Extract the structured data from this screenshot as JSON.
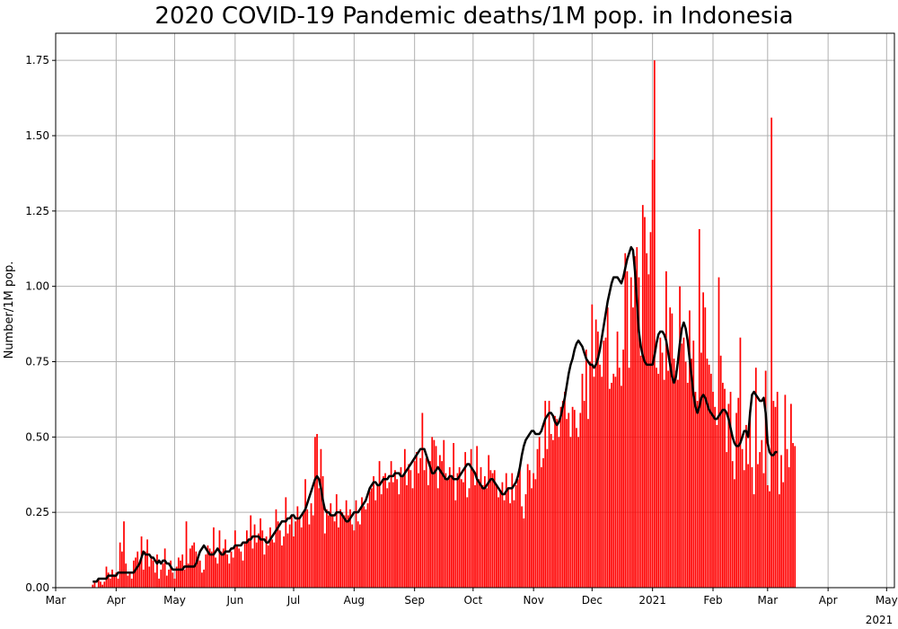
{
  "chart_data": {
    "type": "bar",
    "title": "2020 COVID-19 Pandemic deaths/1M pop. in Indonesia",
    "xlabel": "",
    "ylabel": "Number/1M pop.",
    "ylim": [
      0,
      1.84
    ],
    "yticks": [
      "0.00",
      "0.25",
      "0.50",
      "0.75",
      "1.00",
      "1.25",
      "1.50",
      "1.75"
    ],
    "xlim": [
      "2020-03-01",
      "2021-05-05"
    ],
    "xticks": [
      {
        "date": "2020-03-01",
        "label": "Mar"
      },
      {
        "date": "2020-04-01",
        "label": "Apr"
      },
      {
        "date": "2020-05-01",
        "label": "May"
      },
      {
        "date": "2020-06-01",
        "label": "Jun"
      },
      {
        "date": "2020-07-01",
        "label": "Jul"
      },
      {
        "date": "2020-08-01",
        "label": "Aug"
      },
      {
        "date": "2020-09-01",
        "label": "Sep"
      },
      {
        "date": "2020-10-01",
        "label": "Oct"
      },
      {
        "date": "2020-11-01",
        "label": "Nov"
      },
      {
        "date": "2020-12-01",
        "label": "Dec"
      },
      {
        "date": "2021-01-01",
        "label": "2021"
      },
      {
        "date": "2021-02-01",
        "label": "Feb"
      },
      {
        "date": "2021-03-01",
        "label": "Mar"
      },
      {
        "date": "2021-04-01",
        "label": "Apr"
      },
      {
        "date": "2021-05-01",
        "label": "May"
      }
    ],
    "offset_label": "2021",
    "grid": true,
    "bar_color": "#ff0000",
    "line_color": "#000000",
    "series": [
      {
        "type": "bar",
        "x_start": "2020-03-20",
        "values": [
          0.01,
          0.02,
          0.0,
          0.03,
          0.02,
          0.01,
          0.02,
          0.07,
          0.05,
          0.03,
          0.06,
          0.04,
          0.05,
          0.03,
          0.15,
          0.12,
          0.22,
          0.08,
          0.04,
          0.05,
          0.03,
          0.09,
          0.1,
          0.12,
          0.08,
          0.17,
          0.06,
          0.12,
          0.16,
          0.07,
          0.1,
          0.09,
          0.05,
          0.11,
          0.03,
          0.06,
          0.08,
          0.13,
          0.04,
          0.06,
          0.09,
          0.05,
          0.03,
          0.07,
          0.1,
          0.09,
          0.11,
          0.06,
          0.22,
          0.08,
          0.13,
          0.14,
          0.15,
          0.12,
          0.1,
          0.09,
          0.05,
          0.06,
          0.11,
          0.14,
          0.13,
          0.12,
          0.2,
          0.1,
          0.08,
          0.19,
          0.12,
          0.13,
          0.16,
          0.11,
          0.08,
          0.12,
          0.1,
          0.19,
          0.14,
          0.13,
          0.12,
          0.09,
          0.15,
          0.19,
          0.16,
          0.24,
          0.13,
          0.21,
          0.15,
          0.18,
          0.23,
          0.19,
          0.11,
          0.17,
          0.14,
          0.2,
          0.16,
          0.15,
          0.26,
          0.22,
          0.19,
          0.14,
          0.17,
          0.3,
          0.18,
          0.21,
          0.24,
          0.17,
          0.22,
          0.27,
          0.23,
          0.2,
          0.25,
          0.36,
          0.26,
          0.21,
          0.28,
          0.24,
          0.5,
          0.51,
          0.33,
          0.46,
          0.37,
          0.18,
          0.26,
          0.24,
          0.28,
          0.24,
          0.22,
          0.31,
          0.2,
          0.26,
          0.25,
          0.24,
          0.29,
          0.24,
          0.26,
          0.21,
          0.19,
          0.29,
          0.22,
          0.21,
          0.3,
          0.27,
          0.26,
          0.28,
          0.32,
          0.33,
          0.37,
          0.29,
          0.34,
          0.42,
          0.31,
          0.37,
          0.38,
          0.33,
          0.35,
          0.42,
          0.35,
          0.39,
          0.36,
          0.31,
          0.4,
          0.37,
          0.46,
          0.34,
          0.41,
          0.39,
          0.33,
          0.42,
          0.45,
          0.38,
          0.43,
          0.58,
          0.39,
          0.43,
          0.34,
          0.42,
          0.5,
          0.49,
          0.47,
          0.33,
          0.44,
          0.42,
          0.49,
          0.38,
          0.36,
          0.4,
          0.37,
          0.48,
          0.29,
          0.38,
          0.4,
          0.36,
          0.35,
          0.45,
          0.3,
          0.33,
          0.46,
          0.39,
          0.34,
          0.47,
          0.36,
          0.4,
          0.34,
          0.37,
          0.33,
          0.44,
          0.39,
          0.38,
          0.39,
          0.34,
          0.3,
          0.32,
          0.35,
          0.29,
          0.38,
          0.33,
          0.28,
          0.38,
          0.29,
          0.34,
          0.36,
          0.4,
          0.27,
          0.23,
          0.31,
          0.41,
          0.39,
          0.33,
          0.38,
          0.36,
          0.46,
          0.5,
          0.4,
          0.43,
          0.62,
          0.46,
          0.62,
          0.51,
          0.49,
          0.57,
          0.56,
          0.5,
          0.6,
          0.62,
          0.65,
          0.56,
          0.58,
          0.5,
          0.6,
          0.59,
          0.53,
          0.5,
          0.58,
          0.71,
          0.62,
          0.79,
          0.56,
          0.75,
          0.94,
          0.7,
          0.89,
          0.85,
          0.74,
          0.7,
          0.82,
          0.83,
          0.93,
          0.66,
          0.68,
          0.71,
          0.7,
          0.85,
          0.73,
          0.67,
          0.79,
          1.11,
          1.05,
          0.73,
          1.03,
          0.93,
          1.1,
          1.13,
          1.03,
          0.77,
          1.27,
          1.23,
          1.11,
          1.04,
          1.18,
          1.42,
          1.75,
          0.73,
          0.71,
          0.83,
          0.78,
          0.69,
          1.05,
          0.72,
          0.93,
          0.91,
          0.76,
          0.72,
          0.69,
          1.0,
          0.81,
          0.83,
          0.75,
          0.68,
          0.92,
          0.76,
          0.82,
          0.65,
          0.62,
          1.19,
          0.78,
          0.98,
          0.93,
          0.76,
          0.74,
          0.71,
          0.65,
          0.6,
          0.54,
          1.03,
          0.77,
          0.68,
          0.66,
          0.45,
          0.61,
          0.65,
          0.42,
          0.36,
          0.58,
          0.63,
          0.83,
          0.46,
          0.39,
          0.54,
          0.41,
          0.59,
          0.4,
          0.31,
          0.73,
          0.41,
          0.45,
          0.49,
          0.38,
          0.72,
          0.34,
          0.32,
          1.56,
          0.62,
          0.6,
          0.65,
          0.31,
          0.44,
          0.35,
          0.64,
          0.46,
          0.4,
          0.61,
          0.48,
          0.47
        ]
      },
      {
        "type": "line",
        "name": "",
        "x_start": "2020-03-20",
        "values": [
          0.02,
          0.02,
          0.02,
          0.03,
          0.03,
          0.03,
          0.03,
          0.03,
          0.04,
          0.04,
          0.04,
          0.04,
          0.04,
          0.05,
          0.05,
          0.05,
          0.05,
          0.05,
          0.05,
          0.05,
          0.05,
          0.05,
          0.06,
          0.07,
          0.08,
          0.1,
          0.12,
          0.11,
          0.11,
          0.11,
          0.1,
          0.1,
          0.09,
          0.08,
          0.09,
          0.08,
          0.09,
          0.09,
          0.08,
          0.08,
          0.07,
          0.06,
          0.06,
          0.06,
          0.06,
          0.06,
          0.06,
          0.07,
          0.07,
          0.07,
          0.07,
          0.07,
          0.07,
          0.08,
          0.1,
          0.12,
          0.13,
          0.14,
          0.13,
          0.12,
          0.11,
          0.11,
          0.11,
          0.12,
          0.13,
          0.12,
          0.11,
          0.11,
          0.12,
          0.12,
          0.12,
          0.13,
          0.13,
          0.14,
          0.14,
          0.14,
          0.14,
          0.15,
          0.15,
          0.15,
          0.16,
          0.16,
          0.17,
          0.17,
          0.17,
          0.17,
          0.16,
          0.16,
          0.16,
          0.15,
          0.15,
          0.16,
          0.17,
          0.18,
          0.19,
          0.2,
          0.21,
          0.22,
          0.22,
          0.22,
          0.23,
          0.23,
          0.24,
          0.24,
          0.23,
          0.23,
          0.23,
          0.24,
          0.25,
          0.26,
          0.28,
          0.3,
          0.32,
          0.34,
          0.36,
          0.37,
          0.36,
          0.33,
          0.29,
          0.26,
          0.25,
          0.25,
          0.24,
          0.24,
          0.24,
          0.25,
          0.25,
          0.25,
          0.24,
          0.23,
          0.22,
          0.22,
          0.23,
          0.24,
          0.25,
          0.25,
          0.25,
          0.26,
          0.27,
          0.28,
          0.29,
          0.31,
          0.33,
          0.34,
          0.35,
          0.35,
          0.34,
          0.34,
          0.35,
          0.36,
          0.36,
          0.36,
          0.37,
          0.37,
          0.37,
          0.38,
          0.38,
          0.38,
          0.37,
          0.37,
          0.38,
          0.39,
          0.4,
          0.41,
          0.42,
          0.43,
          0.44,
          0.45,
          0.46,
          0.46,
          0.46,
          0.44,
          0.42,
          0.4,
          0.38,
          0.38,
          0.39,
          0.4,
          0.39,
          0.38,
          0.37,
          0.36,
          0.36,
          0.37,
          0.37,
          0.36,
          0.36,
          0.36,
          0.37,
          0.38,
          0.39,
          0.4,
          0.41,
          0.41,
          0.4,
          0.39,
          0.38,
          0.36,
          0.35,
          0.34,
          0.33,
          0.33,
          0.34,
          0.35,
          0.36,
          0.36,
          0.35,
          0.34,
          0.33,
          0.32,
          0.31,
          0.31,
          0.32,
          0.33,
          0.33,
          0.33,
          0.34,
          0.35,
          0.37,
          0.4,
          0.44,
          0.47,
          0.49,
          0.5,
          0.51,
          0.52,
          0.52,
          0.51,
          0.51,
          0.51,
          0.52,
          0.54,
          0.56,
          0.57,
          0.58,
          0.58,
          0.57,
          0.55,
          0.54,
          0.55,
          0.57,
          0.6,
          0.63,
          0.67,
          0.71,
          0.74,
          0.76,
          0.79,
          0.81,
          0.82,
          0.81,
          0.8,
          0.78,
          0.76,
          0.75,
          0.74,
          0.74,
          0.73,
          0.74,
          0.76,
          0.79,
          0.83,
          0.87,
          0.91,
          0.95,
          0.98,
          1.01,
          1.03,
          1.03,
          1.03,
          1.02,
          1.01,
          1.03,
          1.06,
          1.09,
          1.11,
          1.13,
          1.12,
          1.05,
          0.95,
          0.85,
          0.8,
          0.77,
          0.75,
          0.74,
          0.74,
          0.74,
          0.74,
          0.77,
          0.81,
          0.84,
          0.85,
          0.85,
          0.84,
          0.82,
          0.78,
          0.74,
          0.7,
          0.68,
          0.7,
          0.75,
          0.81,
          0.86,
          0.88,
          0.86,
          0.82,
          0.76,
          0.7,
          0.64,
          0.6,
          0.58,
          0.6,
          0.63,
          0.64,
          0.63,
          0.61,
          0.59,
          0.58,
          0.57,
          0.56,
          0.56,
          0.57,
          0.58,
          0.59,
          0.59,
          0.58,
          0.56,
          0.53,
          0.5,
          0.48,
          0.47,
          0.47,
          0.48,
          0.5,
          0.52,
          0.52,
          0.5,
          0.58,
          0.64,
          0.65,
          0.64,
          0.63,
          0.62,
          0.62,
          0.63,
          0.58,
          0.48,
          0.45,
          0.44,
          0.44,
          0.45,
          0.45
        ]
      }
    ]
  }
}
